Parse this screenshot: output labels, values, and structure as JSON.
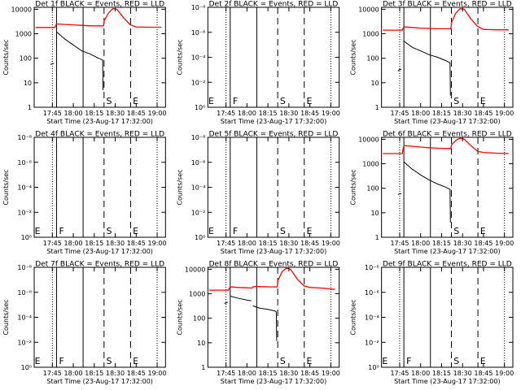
{
  "chart_data": {
    "type": "line",
    "x_tick_labels": [
      "17:45",
      "18:00",
      "18:15",
      "18:30",
      "18:45",
      "19:00"
    ],
    "x_label": "Start Time (23-Aug-17 17:32:00)",
    "y_label": "Counts/sec",
    "y_scale": "log",
    "colors": {
      "events": "#000000",
      "lld": "#ff0000"
    },
    "panels": [
      {
        "title": "Det 1f BLACK = Events, RED = LLD",
        "active": true,
        "y_tick_labels": [
          "1",
          "10",
          "100",
          "1000",
          "10000"
        ],
        "ylim": [
          1,
          12000
        ],
        "vlines": [
          {
            "x": 17.8,
            "style": "solid"
          },
          {
            "x": 18.1167,
            "style": "solid"
          },
          {
            "x": 18.3667,
            "style": "dashed"
          },
          {
            "x": 18.6833,
            "style": "dashed"
          }
        ],
        "markers": [
          {
            "text": "S",
            "x": 18.3833
          },
          {
            "text": "E",
            "x": 18.7
          }
        ],
        "series": [
          {
            "role": "lld",
            "points": [
              [
                17.55,
                1800
              ],
              [
                17.78,
                1800
              ],
              [
                17.8,
                2500
              ],
              [
                17.9,
                2400
              ],
              [
                18.0,
                2300
              ],
              [
                18.1,
                2200
              ],
              [
                18.2,
                2100
              ],
              [
                18.3,
                2100
              ],
              [
                18.36,
                2100
              ],
              [
                18.37,
                3500
              ],
              [
                18.42,
                7000
              ],
              [
                18.47,
                10500
              ],
              [
                18.52,
                10000
              ],
              [
                18.6,
                4500
              ],
              [
                18.68,
                2300
              ],
              [
                18.75,
                1900
              ],
              [
                18.9,
                1850
              ],
              [
                19.05,
                1850
              ]
            ]
          },
          {
            "role": "events",
            "points": [
              [
                17.8,
                1200
              ],
              [
                17.9,
                600
              ],
              [
                18.0,
                350
              ],
              [
                18.1,
                200
              ],
              [
                18.2,
                150
              ],
              [
                18.3,
                100
              ],
              [
                18.35,
                85
              ],
              [
                18.355,
                5
              ]
            ]
          },
          {
            "role": "events",
            "points": [
              [
                17.73,
                55
              ],
              [
                17.75,
                60
              ],
              [
                17.77,
                60
              ]
            ]
          }
        ]
      },
      {
        "title": "Det 2f BLACK = Events, RED = LLD",
        "active": false,
        "y_tick_labels": [
          "10⁰",
          "10⁻²",
          "10⁻⁴",
          "10⁻⁶",
          "10⁻⁸"
        ],
        "ylim": [
          1,
          100000000
        ],
        "vlines": [
          {
            "x": 17.8,
            "style": "solid"
          },
          {
            "x": 18.1167,
            "style": "solid"
          },
          {
            "x": 18.3667,
            "style": "dashed"
          },
          {
            "x": 18.6833,
            "style": "dashed"
          }
        ],
        "markers": [
          {
            "text": "E",
            "x": 17.53
          },
          {
            "text": "F",
            "x": 17.82
          },
          {
            "text": "S",
            "x": 18.3833
          },
          {
            "text": "E",
            "x": 18.7
          }
        ],
        "series": []
      },
      {
        "title": "Det 3f BLACK = Events, RED = LLD",
        "active": true,
        "y_tick_labels": [
          "1",
          "10",
          "100",
          "1000",
          "10000"
        ],
        "ylim": [
          1,
          12000
        ],
        "vlines": [
          {
            "x": 17.8,
            "style": "solid"
          },
          {
            "x": 18.1167,
            "style": "solid"
          },
          {
            "x": 18.3667,
            "style": "dashed"
          },
          {
            "x": 18.6833,
            "style": "dashed"
          }
        ],
        "markers": [
          {
            "text": "S",
            "x": 18.3833
          },
          {
            "text": "E",
            "x": 18.7
          }
        ],
        "series": [
          {
            "role": "lld",
            "points": [
              [
                17.55,
                1400
              ],
              [
                17.78,
                1400
              ],
              [
                17.8,
                1900
              ],
              [
                17.9,
                1800
              ],
              [
                18.0,
                1700
              ],
              [
                18.1,
                1650
              ],
              [
                18.2,
                1600
              ],
              [
                18.3,
                1600
              ],
              [
                18.36,
                1600
              ],
              [
                18.37,
                3000
              ],
              [
                18.42,
                7000
              ],
              [
                18.47,
                10500
              ],
              [
                18.52,
                10000
              ],
              [
                18.6,
                4000
              ],
              [
                18.68,
                2000
              ],
              [
                18.75,
                1500
              ],
              [
                18.9,
                1450
              ],
              [
                19.05,
                1450
              ]
            ]
          },
          {
            "role": "events",
            "points": [
              [
                17.8,
                500
              ],
              [
                17.9,
                280
              ],
              [
                18.0,
                200
              ],
              [
                18.1,
                140
              ],
              [
                18.2,
                110
              ],
              [
                18.3,
                80
              ],
              [
                18.35,
                65
              ],
              [
                18.355,
                3
              ]
            ]
          },
          {
            "role": "events",
            "points": [
              [
                17.73,
                30
              ],
              [
                17.75,
                35
              ],
              [
                17.77,
                35
              ]
            ]
          }
        ]
      },
      {
        "title": "Det 4f BLACK = Events, RED = LLD",
        "active": false,
        "y_tick_labels": [
          "10⁰",
          "10⁻²",
          "10⁻⁴",
          "10⁻⁶",
          "10⁻⁸"
        ],
        "ylim": [
          1,
          100000000
        ],
        "vlines": [
          {
            "x": 17.8,
            "style": "solid"
          },
          {
            "x": 18.1167,
            "style": "solid"
          },
          {
            "x": 18.3667,
            "style": "dashed"
          },
          {
            "x": 18.6833,
            "style": "dashed"
          }
        ],
        "markers": [
          {
            "text": "E",
            "x": 17.53
          },
          {
            "text": "F",
            "x": 17.82
          },
          {
            "text": "S",
            "x": 18.3833
          },
          {
            "text": "E",
            "x": 18.7
          }
        ],
        "series": []
      },
      {
        "title": "Det 5f BLACK = Events, RED = LLD",
        "active": false,
        "y_tick_labels": [
          "10⁰",
          "10⁻²",
          "10⁻⁴",
          "10⁻⁶",
          "10⁻⁸"
        ],
        "ylim": [
          1,
          100000000
        ],
        "vlines": [
          {
            "x": 17.8,
            "style": "solid"
          },
          {
            "x": 18.1167,
            "style": "solid"
          },
          {
            "x": 18.3667,
            "style": "dashed"
          },
          {
            "x": 18.6833,
            "style": "dashed"
          }
        ],
        "markers": [
          {
            "text": "E",
            "x": 17.53
          },
          {
            "text": "F",
            "x": 17.82
          },
          {
            "text": "S",
            "x": 18.3833
          },
          {
            "text": "E",
            "x": 18.7
          }
        ],
        "series": []
      },
      {
        "title": "Det 6f BLACK = Events, RED = LLD",
        "active": true,
        "y_tick_labels": [
          "1",
          "10",
          "100",
          "1000",
          "10000"
        ],
        "ylim": [
          1,
          12000
        ],
        "vlines": [
          {
            "x": 17.8,
            "style": "solid"
          },
          {
            "x": 18.1167,
            "style": "solid"
          },
          {
            "x": 18.3667,
            "style": "dashed"
          },
          {
            "x": 18.6833,
            "style": "dashed"
          }
        ],
        "markers": [
          {
            "text": "S",
            "x": 18.3833
          },
          {
            "text": "E",
            "x": 18.7
          }
        ],
        "series": [
          {
            "role": "lld",
            "points": [
              [
                17.55,
                2600
              ],
              [
                17.78,
                2600
              ],
              [
                17.8,
                5500
              ],
              [
                17.9,
                5200
              ],
              [
                18.0,
                4800
              ],
              [
                18.1,
                4500
              ],
              [
                18.2,
                4300
              ],
              [
                18.3,
                4200
              ],
              [
                18.36,
                4200
              ],
              [
                18.37,
                6000
              ],
              [
                18.42,
                9000
              ],
              [
                18.47,
                11000
              ],
              [
                18.52,
                10000
              ],
              [
                18.6,
                5500
              ],
              [
                18.68,
                3200
              ],
              [
                18.75,
                2900
              ],
              [
                18.9,
                2700
              ],
              [
                19.05,
                2600
              ]
            ]
          },
          {
            "role": "events",
            "points": [
              [
                17.8,
                1200
              ],
              [
                17.9,
                600
              ],
              [
                18.0,
                350
              ],
              [
                18.1,
                220
              ],
              [
                18.2,
                150
              ],
              [
                18.3,
                110
              ],
              [
                18.35,
                90
              ],
              [
                18.355,
                4
              ]
            ]
          },
          {
            "role": "events",
            "points": [
              [
                17.73,
                55
              ],
              [
                17.75,
                60
              ],
              [
                17.77,
                60
              ]
            ]
          }
        ]
      },
      {
        "title": "Det 7f BLACK = Events, RED = LLD",
        "active": false,
        "y_tick_labels": [
          "10⁰",
          "10⁻²",
          "10⁻⁴",
          "10⁻⁶",
          "10⁻⁸"
        ],
        "ylim": [
          1,
          100000000
        ],
        "vlines": [
          {
            "x": 17.8,
            "style": "solid"
          },
          {
            "x": 18.1167,
            "style": "solid"
          },
          {
            "x": 18.3667,
            "style": "dashed"
          },
          {
            "x": 18.6833,
            "style": "dashed"
          }
        ],
        "markers": [
          {
            "text": "E",
            "x": 17.53
          },
          {
            "text": "F",
            "x": 17.82
          },
          {
            "text": "S",
            "x": 18.3833
          },
          {
            "text": "E",
            "x": 18.7
          }
        ],
        "series": []
      },
      {
        "title": "Det 8f BLACK = Events, RED = LLD",
        "active": true,
        "y_tick_labels": [
          "1",
          "10",
          "100",
          "1000",
          "10000"
        ],
        "ylim": [
          1,
          12000
        ],
        "vlines": [
          {
            "x": 17.8,
            "style": "solid"
          },
          {
            "x": 18.1167,
            "style": "solid"
          },
          {
            "x": 18.3667,
            "style": "dashed"
          },
          {
            "x": 18.6833,
            "style": "dashed"
          }
        ],
        "markers": [
          {
            "text": "S",
            "x": 18.3833
          },
          {
            "text": "E",
            "x": 18.7
          }
        ],
        "series": [
          {
            "role": "lld",
            "points": [
              [
                17.55,
                1400
              ],
              [
                17.78,
                1400
              ],
              [
                17.8,
                1900
              ],
              [
                17.9,
                1800
              ],
              [
                18.0,
                1750
              ],
              [
                18.06,
                1700
              ],
              [
                18.07,
                1900
              ],
              [
                18.1,
                2000
              ],
              [
                18.2,
                1950
              ],
              [
                18.3,
                1900
              ],
              [
                18.36,
                1900
              ],
              [
                18.37,
                3500
              ],
              [
                18.42,
                8000
              ],
              [
                18.47,
                11000
              ],
              [
                18.52,
                10000
              ],
              [
                18.6,
                4000
              ],
              [
                18.68,
                2100
              ],
              [
                18.75,
                1800
              ],
              [
                18.9,
                1700
              ],
              [
                19.05,
                1500
              ]
            ]
          },
          {
            "role": "events",
            "points": [
              [
                17.8,
                800
              ],
              [
                17.9,
                650
              ],
              [
                18.0,
                550
              ],
              [
                18.05,
                520
              ]
            ]
          },
          {
            "role": "events",
            "points": [
              [
                18.07,
                320
              ],
              [
                18.15,
                260
              ],
              [
                18.25,
                230
              ],
              [
                18.33,
                200
              ],
              [
                18.35,
                180
              ],
              [
                18.355,
                12
              ]
            ]
          },
          {
            "role": "events",
            "points": [
              [
                17.73,
                400
              ],
              [
                17.75,
                420
              ],
              [
                17.77,
                450
              ]
            ]
          }
        ]
      },
      {
        "title": "Det 9f BLACK = Events, RED = LLD",
        "active": false,
        "y_tick_labels": [
          "10⁰",
          "10⁻²",
          "10⁻⁴",
          "10⁻⁶",
          "10⁻⁸"
        ],
        "ylim": [
          1,
          100000000
        ],
        "vlines": [
          {
            "x": 17.8,
            "style": "solid"
          },
          {
            "x": 18.1167,
            "style": "solid"
          },
          {
            "x": 18.3667,
            "style": "dashed"
          },
          {
            "x": 18.6833,
            "style": "dashed"
          }
        ],
        "markers": [
          {
            "text": "E",
            "x": 17.53
          },
          {
            "text": "F",
            "x": 17.82
          },
          {
            "text": "S",
            "x": 18.3833
          },
          {
            "text": "E",
            "x": 18.7
          }
        ],
        "series": []
      }
    ]
  }
}
